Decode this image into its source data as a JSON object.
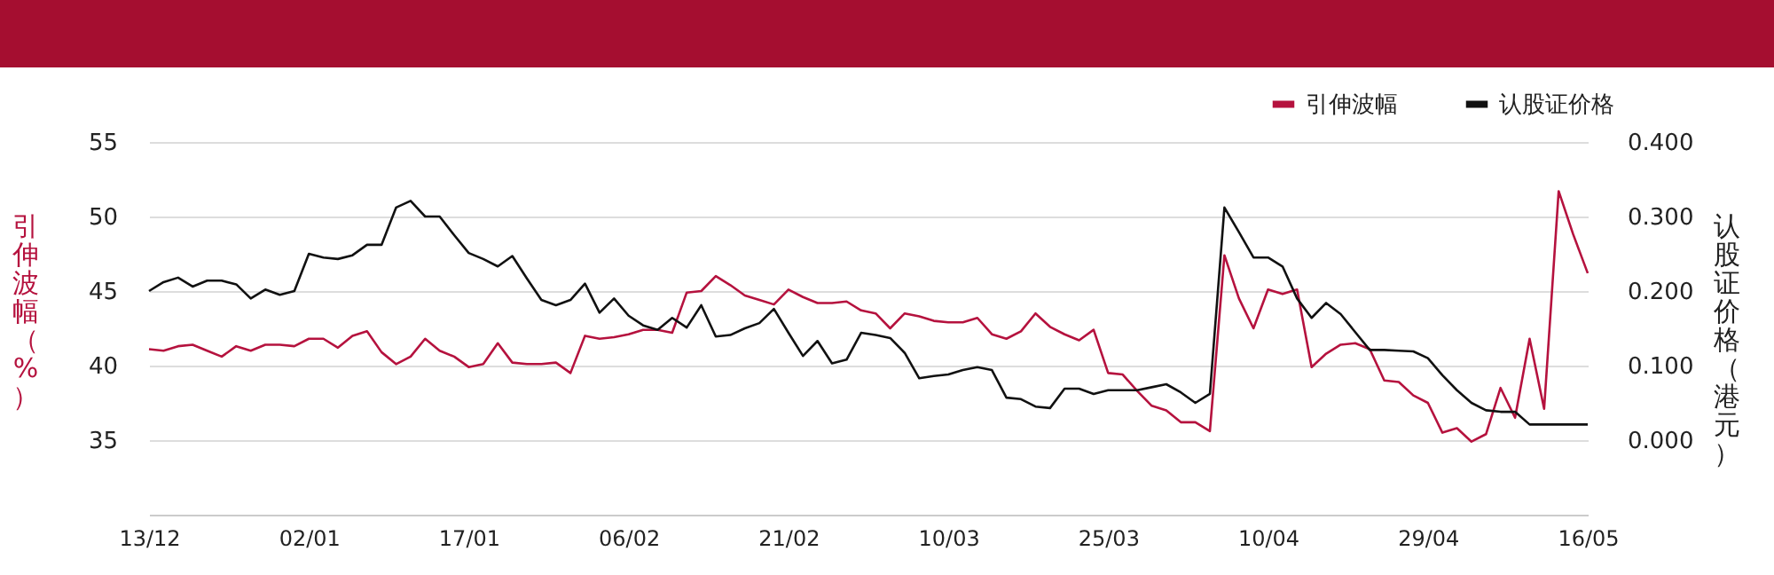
{
  "chart_data": {
    "type": "line",
    "ylabel": "引伸波幅（%）",
    "y2label": "认股证价格（港元）",
    "categories": [
      "13/12",
      null,
      null,
      null,
      null,
      null,
      null,
      null,
      null,
      null,
      null,
      "02/01",
      null,
      null,
      null,
      null,
      null,
      null,
      null,
      null,
      null,
      null,
      "17/01",
      null,
      null,
      null,
      null,
      null,
      null,
      null,
      null,
      null,
      null,
      "06/02",
      null,
      null,
      null,
      null,
      null,
      null,
      null,
      null,
      null,
      null,
      "21/02",
      null,
      null,
      null,
      null,
      null,
      null,
      null,
      null,
      null,
      null,
      "10/03",
      null,
      null,
      null,
      null,
      null,
      null,
      null,
      null,
      null,
      null,
      "25/03",
      null,
      null,
      null,
      null,
      null,
      null,
      null,
      null,
      null,
      null,
      "10/04",
      null,
      null,
      null,
      null,
      null,
      null,
      null,
      null,
      null,
      null,
      "29/04",
      null,
      null,
      null,
      null,
      null,
      null,
      null,
      null,
      null,
      null,
      "16/05"
    ],
    "series": [
      {
        "name": "引伸波幅",
        "color": "#b5123e",
        "values": [
          41.1,
          41.0,
          41.3,
          41.4,
          41.0,
          40.6,
          41.3,
          41.0,
          41.4,
          41.4,
          41.3,
          41.8,
          41.8,
          41.2,
          42.0,
          42.3,
          40.9,
          40.1,
          40.6,
          41.8,
          41.0,
          40.6,
          39.9,
          40.1,
          41.5,
          40.2,
          40.1,
          40.1,
          40.2,
          39.5,
          42.0,
          41.8,
          41.9,
          42.1,
          42.4,
          42.4,
          42.2,
          44.9,
          45.0,
          46.0,
          45.4,
          44.7,
          44.4,
          44.1,
          45.1,
          44.6,
          44.2,
          44.2,
          44.3,
          43.7,
          43.5,
          42.5,
          43.5,
          43.3,
          43.0,
          42.9,
          42.9,
          43.2,
          42.1,
          41.8,
          42.3,
          43.5,
          42.6,
          42.1,
          41.7,
          42.4,
          39.5,
          39.4,
          38.3,
          37.3,
          37.0,
          36.2,
          36.2,
          35.6,
          47.4,
          44.5,
          42.5,
          45.1,
          44.8,
          45.1,
          39.9,
          40.8,
          41.4,
          41.5,
          41.1,
          39.0,
          38.9,
          38.0,
          37.5,
          35.5,
          35.8,
          34.9,
          35.4,
          38.5,
          36.5,
          41.8,
          37.1,
          51.7,
          48.8,
          46.2
        ]
      },
      {
        "name": "认股证价格",
        "color": "#111111",
        "axis": "y2",
        "values": [
          0.2,
          0.212,
          0.218,
          0.206,
          0.214,
          0.214,
          0.209,
          0.19,
          0.202,
          0.195,
          0.2,
          0.25,
          0.245,
          0.243,
          0.248,
          0.262,
          0.262,
          0.312,
          0.321,
          0.3,
          0.3,
          0.275,
          0.251,
          0.243,
          0.233,
          0.247,
          0.217,
          0.188,
          0.181,
          0.188,
          0.21,
          0.171,
          0.19,
          0.167,
          0.154,
          0.148,
          0.164,
          0.151,
          0.181,
          0.139,
          0.141,
          0.15,
          0.157,
          0.176,
          0.144,
          0.113,
          0.133,
          0.103,
          0.108,
          0.144,
          0.141,
          0.137,
          0.117,
          0.083,
          0.086,
          0.088,
          0.094,
          0.098,
          0.094,
          0.057,
          0.055,
          0.045,
          0.043,
          0.069,
          0.069,
          0.062,
          0.067,
          0.067,
          0.067,
          0.071,
          0.075,
          0.064,
          0.05,
          0.062,
          0.312,
          0.279,
          0.245,
          0.245,
          0.233,
          0.19,
          0.164,
          0.184,
          0.169,
          0.145,
          0.121,
          0.121,
          0.12,
          0.119,
          0.11,
          0.087,
          0.067,
          0.05,
          0.04,
          0.038,
          0.038,
          0.021,
          0.021,
          0.021,
          0.021,
          0.021
        ]
      }
    ],
    "ylim": [
      30,
      55
    ],
    "yticks": [
      35,
      40,
      45,
      50,
      55
    ],
    "y2lim": [
      -0.1,
      0.4
    ],
    "y2ticks": [
      {
        "value": 0,
        "label": "0.000"
      },
      {
        "value": 0.1,
        "label": "0.100"
      },
      {
        "value": 0.2,
        "label": "0.200"
      },
      {
        "value": 0.3,
        "label": "0.300"
      },
      {
        "value": 0.4,
        "label": "0.400"
      }
    ],
    "grid": "y",
    "legend": "top right",
    "marker": "none",
    "line_style": "solid"
  }
}
